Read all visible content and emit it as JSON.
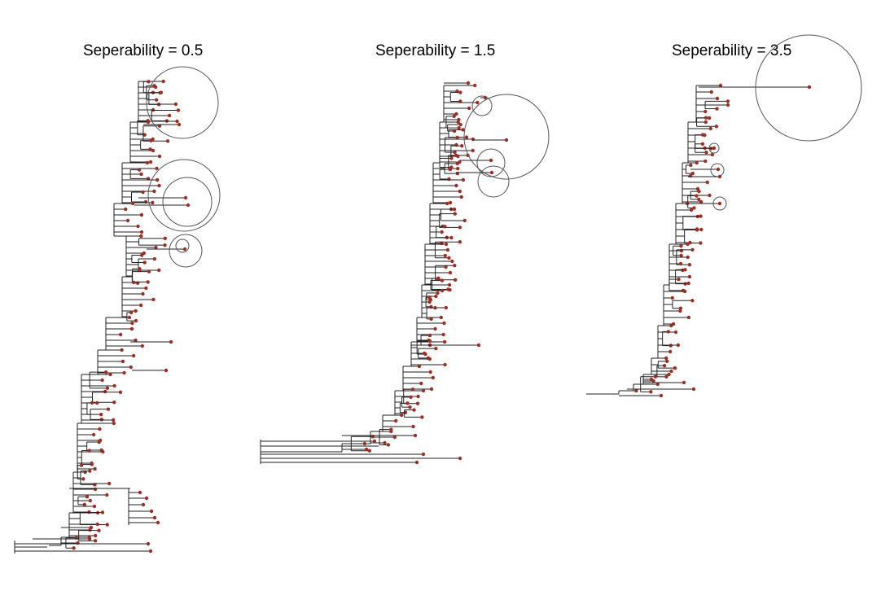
{
  "figure": {
    "panels": [
      {
        "title": "Seperability = 0.5"
      },
      {
        "title": "Seperability = 1.5"
      },
      {
        "title": "Seperability = 3.5"
      }
    ],
    "colors": {
      "leaf": "#9b2f23",
      "branch": "#222222",
      "circle": "#555555"
    }
  }
}
